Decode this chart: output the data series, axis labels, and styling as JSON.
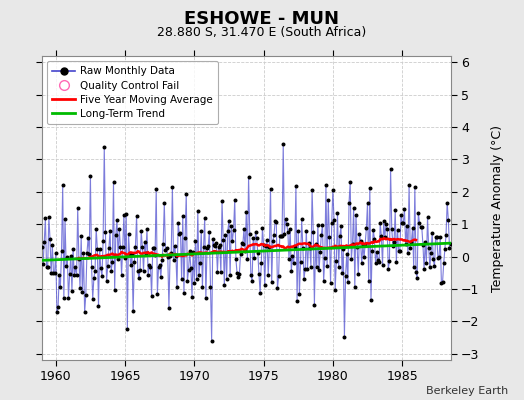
{
  "title": "ESHOWE - MUN",
  "subtitle": "28.880 S, 31.470 E (South Africa)",
  "ylabel": "Temperature Anomaly (°C)",
  "attribution": "Berkeley Earth",
  "year_start": 1959.0,
  "year_end": 1988.5,
  "ylim": [
    -3.2,
    6.2
  ],
  "yticks": [
    -3,
    -2,
    -1,
    0,
    1,
    2,
    3,
    4,
    5,
    6
  ],
  "xticks": [
    1960,
    1965,
    1970,
    1975,
    1980,
    1985
  ],
  "bg_color": "#e8e8e8",
  "plot_bg_color": "#ffffff",
  "raw_line_color": "#4444cc",
  "raw_marker_color": "#000000",
  "moving_avg_color": "#ff0000",
  "trend_color": "#00bb00",
  "legend_bg": "#ffffff",
  "grid_color": "#cccccc",
  "trend_slope": 0.018,
  "trend_intercept": -0.1,
  "seed": 42
}
